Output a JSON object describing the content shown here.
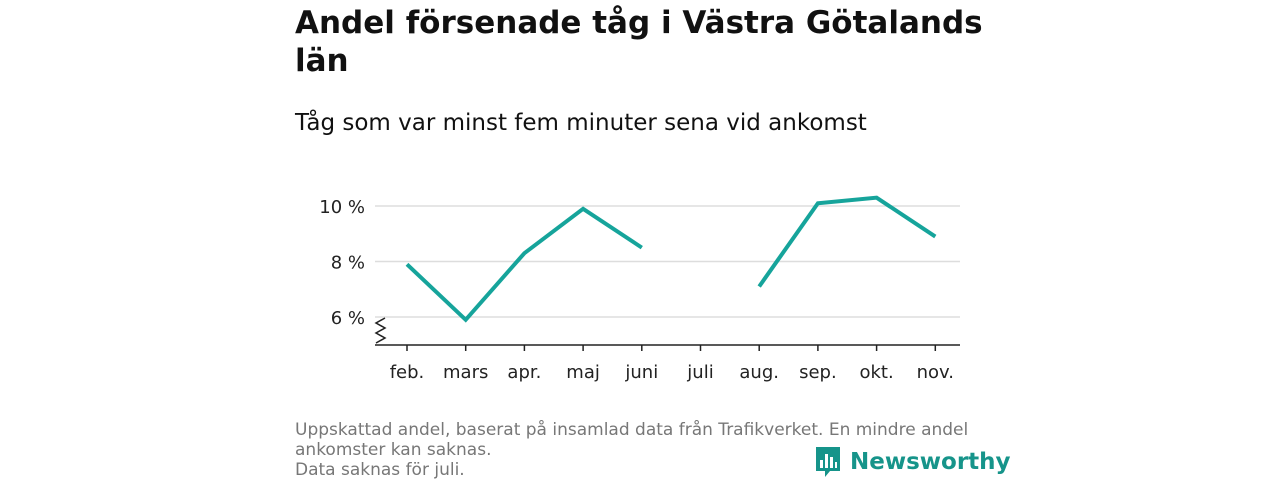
{
  "title": "Andel försenade tåg i Västra Götalands län",
  "subtitle": "Tåg som var minst fem minuter sena vid ankomst",
  "chart_data": {
    "type": "line",
    "categories": [
      "feb.",
      "mars",
      "apr.",
      "maj",
      "juni",
      "juli",
      "aug.",
      "sep.",
      "okt.",
      "nov."
    ],
    "series": [
      {
        "values": [
          7.9,
          5.9,
          8.3,
          9.9,
          8.5,
          null,
          7.1,
          10.1,
          10.3,
          8.9
        ]
      }
    ],
    "yticks": [
      6,
      8,
      10
    ],
    "ytick_labels": [
      "6 %",
      "8 %",
      "10 %"
    ],
    "ylim": [
      5,
      11
    ],
    "grid": true,
    "y_axis_break": true,
    "line_color": "#16a49b"
  },
  "footnote": {
    "line1": "Uppskattad andel, baserat på insamlad data från Trafikverket. En mindre andel",
    "line2": "ankomster kan saknas.",
    "line3": "Data saknas för juli."
  },
  "logo": {
    "text": "Newsworthy",
    "icon": "newsworthy-bar-chart-icon",
    "color": "#16948a"
  }
}
